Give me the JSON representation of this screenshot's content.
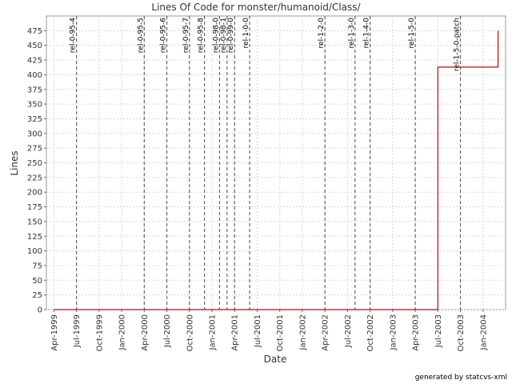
{
  "chart_data": {
    "type": "line",
    "step": true,
    "title": "Lines Of Code for monster/humanoid/Class/",
    "x_label": "Date",
    "y_label": "Lines",
    "footer": "generated by statcvs-xml",
    "x": [
      "1999-04",
      "2003-07",
      "2004-03"
    ],
    "series": [
      {
        "name": "Lines",
        "color": "#cc0000",
        "values": [
          0,
          413,
          475
        ]
      }
    ],
    "xlim": [
      "1999-03",
      "2004-04"
    ],
    "xticks": [
      {
        "value": "1999-04",
        "label": "Apr-1999"
      },
      {
        "value": "1999-07",
        "label": "Jul-1999"
      },
      {
        "value": "1999-10",
        "label": "Oct-1999"
      },
      {
        "value": "2000-01",
        "label": "Jan-2000"
      },
      {
        "value": "2000-04",
        "label": "Apr-2000"
      },
      {
        "value": "2000-07",
        "label": "Jul-2000"
      },
      {
        "value": "2000-10",
        "label": "Oct-2000"
      },
      {
        "value": "2001-01",
        "label": "Jan-2001"
      },
      {
        "value": "2001-04",
        "label": "Apr-2001"
      },
      {
        "value": "2001-07",
        "label": "Jul-2001"
      },
      {
        "value": "2001-10",
        "label": "Oct-2001"
      },
      {
        "value": "2002-01",
        "label": "Jan-2002"
      },
      {
        "value": "2002-04",
        "label": "Apr-2002"
      },
      {
        "value": "2002-07",
        "label": "Jul-2002"
      },
      {
        "value": "2002-10",
        "label": "Oct-2002"
      },
      {
        "value": "2003-01",
        "label": "Jan-2003"
      },
      {
        "value": "2003-04",
        "label": "Apr-2003"
      },
      {
        "value": "2003-07",
        "label": "Jul-2003"
      },
      {
        "value": "2003-10",
        "label": "Oct-2003"
      },
      {
        "value": "2004-01",
        "label": "Jan-2004"
      }
    ],
    "ylim": [
      0,
      500
    ],
    "yticks": [
      0,
      25,
      50,
      75,
      100,
      125,
      150,
      175,
      200,
      225,
      250,
      275,
      300,
      325,
      350,
      375,
      400,
      425,
      450,
      475
    ],
    "grid": true,
    "markers": [
      {
        "x": "1999-07",
        "label": "rel-0-95-4"
      },
      {
        "x": "2000-04",
        "label": "rel-0-95-5"
      },
      {
        "x": "2000-07",
        "label": "rel-0-95-6"
      },
      {
        "x": "2000-10",
        "label": "rel-0-95-7"
      },
      {
        "x": "2000-12",
        "label": "rel-0-95-8"
      },
      {
        "x": "2001-02",
        "label": "rel-0-98-0"
      },
      {
        "x": "2001-03",
        "label": "rel-0-98-1"
      },
      {
        "x": "2001-04",
        "label": "rel-0-99-0"
      },
      {
        "x": "2001-06",
        "label": "rel-1-0-0"
      },
      {
        "x": "2002-04",
        "label": "rel-1-2-0"
      },
      {
        "x": "2002-08",
        "label": "rel-1-3-0"
      },
      {
        "x": "2002-10",
        "label": "rel-1-4-0"
      },
      {
        "x": "2003-04",
        "label": "rel-1-5-0"
      },
      {
        "x": "2003-10",
        "label": "rel-1-5-0-patch"
      }
    ]
  }
}
